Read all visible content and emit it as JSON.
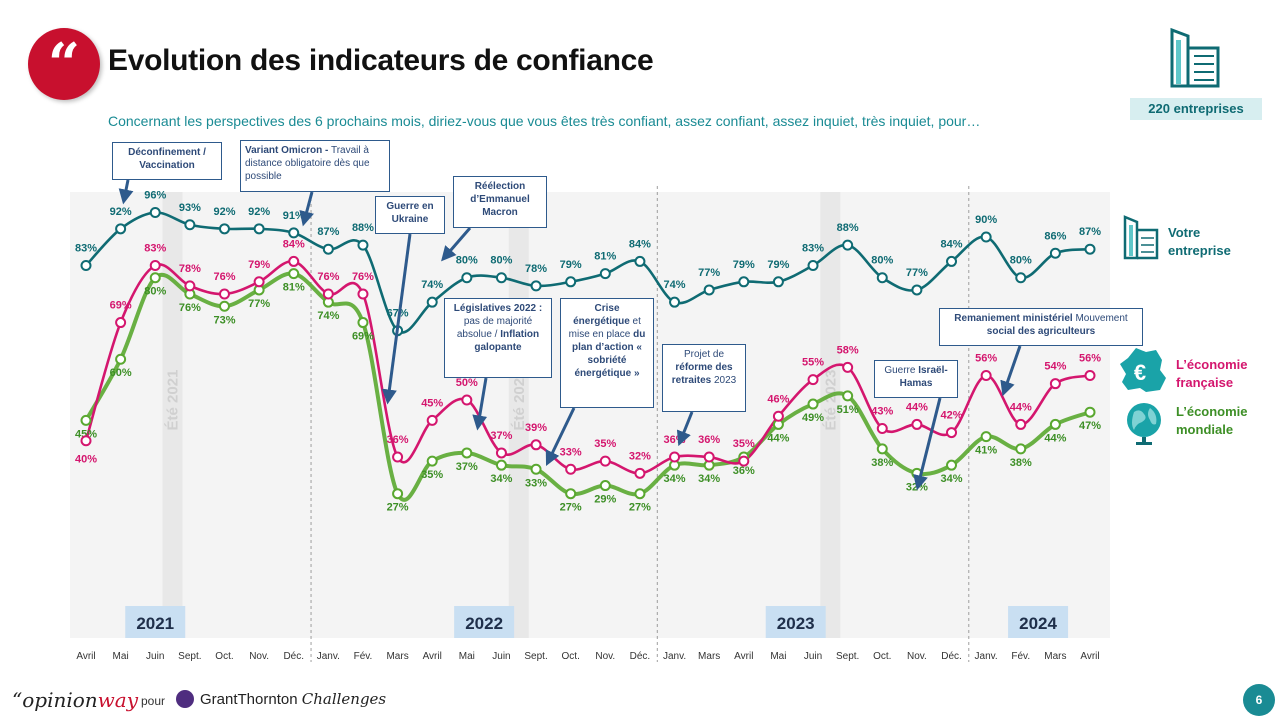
{
  "header": {
    "title": "Evolution des indicateurs de confiance",
    "subtitle": "Concernant les perspectives des 6 prochains mois, diriez-vous que vous êtes très confiant, assez confiant, assez inquiet, très inquiet, pour…",
    "sample": "220 entreprises",
    "quote_glyph": "“"
  },
  "colors": {
    "teal": "#0f6b73",
    "pink": "#d4166e",
    "green": "#5aa830",
    "brand_red": "#c8102e",
    "year_box": "#c9dff2"
  },
  "legend": {
    "entreprise": "Votre entreprise",
    "france": "L’économie française",
    "monde": "L’économie mondiale",
    "icons": [
      "building-icon",
      "euro-france-map-icon",
      "globe-icon"
    ]
  },
  "annotations": [
    {
      "id": "a1",
      "html": "<b>Déconfinement / Vaccination</b>"
    },
    {
      "id": "a2",
      "html": "<b>Variant Omicron -</b> Travail à distance obligatoire dès que possible"
    },
    {
      "id": "a3",
      "html": "<b>Guerre en Ukraine</b>"
    },
    {
      "id": "a4",
      "html": "<b>Réélection d’Emmanuel Macron</b>"
    },
    {
      "id": "a5",
      "html": "<b>Législatives 2022 :</b> pas de majorité absolue / <b>Inflation galopante</b>"
    },
    {
      "id": "a6",
      "html": "<b>Crise énergétique</b> et mise en place <b>du plan d’action « sobriété énergétique »</b>"
    },
    {
      "id": "a7",
      "html": "Projet de <b>réforme des retraites</b> 2023"
    },
    {
      "id": "a8",
      "html": "Guerre <b>Israël-Hamas</b>"
    },
    {
      "id": "a9",
      "html": "<b>Remaniement ministériel</b> Mouvement <b>social des agriculteurs</b>"
    }
  ],
  "footer": {
    "opinion": "“opinion",
    "way": "way",
    "pour": "pour",
    "gt": "GrantThornton",
    "challenges": "Challenges",
    "page": "6"
  },
  "chart_data": {
    "type": "line",
    "categories": [
      "Avril",
      "Mai",
      "Juin",
      "Sept.",
      "Oct.",
      "Nov.",
      "Déc.",
      "Janv.",
      "Fév.",
      "Mars",
      "Avril",
      "Mai",
      "Juin",
      "Sept.",
      "Oct.",
      "Nov.",
      "Déc.",
      "Janv.",
      "Mars",
      "Avril",
      "Mai",
      "Juin",
      "Sept.",
      "Oct.",
      "Nov.",
      "Déc.",
      "Janv.",
      "Fév.",
      "Mars",
      "Avril"
    ],
    "years": [
      {
        "label": "2021",
        "index": 2
      },
      {
        "label": "2022",
        "index": 11.5
      },
      {
        "label": "2023",
        "index": 20.5
      },
      {
        "label": "2024",
        "index": 27.5
      }
    ],
    "summer_labels": [
      {
        "label": "Été 2021",
        "index": 2.5
      },
      {
        "label": "Été 2022",
        "index": 12.5
      },
      {
        "label": "Été 2023",
        "index": 21.5
      }
    ],
    "series": [
      {
        "name": "Votre entreprise",
        "color": "#0f6b73",
        "values": [
          83,
          92,
          96,
          93,
          92,
          92,
          91,
          87,
          88,
          67,
          74,
          80,
          80,
          78,
          79,
          81,
          84,
          74,
          77,
          79,
          79,
          83,
          88,
          80,
          77,
          84,
          90,
          80,
          86,
          87
        ]
      },
      {
        "name": "L’économie française",
        "color": "#d4166e",
        "values": [
          40,
          69,
          83,
          78,
          76,
          79,
          84,
          76,
          76,
          36,
          45,
          50,
          37,
          39,
          33,
          35,
          32,
          36,
          36,
          35,
          46,
          55,
          58,
          43,
          44,
          42,
          56,
          44,
          54,
          56
        ]
      },
      {
        "name": "L’économie mondiale",
        "color": "#5aa830",
        "values": [
          45,
          60,
          80,
          76,
          73,
          77,
          81,
          74,
          69,
          27,
          35,
          37,
          34,
          33,
          27,
          29,
          27,
          34,
          34,
          36,
          44,
          49,
          51,
          38,
          32,
          34,
          41,
          38,
          44,
          47
        ]
      }
    ],
    "unit": "%"
  }
}
